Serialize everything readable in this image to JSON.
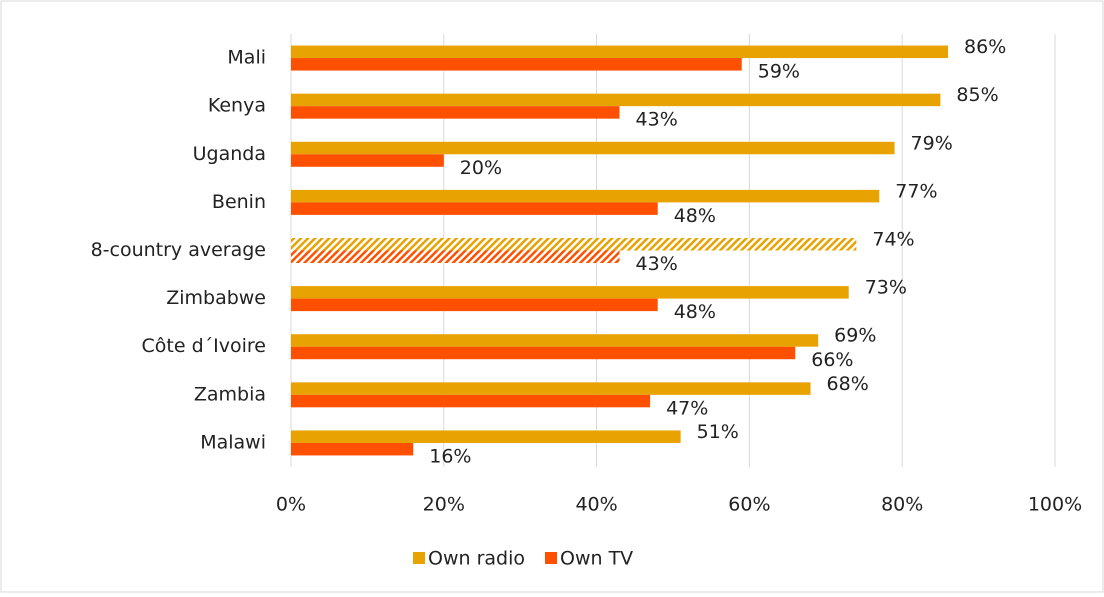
{
  "chart_data": {
    "type": "bar",
    "orientation": "horizontal",
    "categories": [
      "Mali",
      "Kenya",
      "Uganda",
      "Benin",
      "8-country average",
      "Zimbabwe",
      "Côte d´Ivoire",
      "Zambia",
      "Malawi"
    ],
    "series": [
      {
        "name": "Own radio",
        "color": "#e8a202",
        "values": [
          86,
          85,
          79,
          77,
          74,
          73,
          69,
          68,
          51
        ],
        "value_labels": [
          "86%",
          "85%",
          "79%",
          "77%",
          "74%",
          "73%",
          "69%",
          "68%",
          "51%"
        ]
      },
      {
        "name": "Own TV",
        "color": "#ff5000",
        "values": [
          59,
          43,
          20,
          48,
          43,
          48,
          66,
          47,
          16
        ],
        "value_labels": [
          "59%",
          "43%",
          "20%",
          "48%",
          "43%",
          "48%",
          "66%",
          "47%",
          "16%"
        ]
      }
    ],
    "hatched": [
      false,
      false,
      false,
      false,
      true,
      false,
      false,
      false,
      false
    ],
    "xlim": [
      0,
      100
    ],
    "xticks": [
      {
        "value": 0,
        "label": "0%"
      },
      {
        "value": 20,
        "label": "20%"
      },
      {
        "value": 40,
        "label": "40%"
      },
      {
        "value": 60,
        "label": "60%"
      },
      {
        "value": 80,
        "label": "80%"
      },
      {
        "value": 100,
        "label": "100%"
      }
    ],
    "grid": true,
    "legend": "bottom"
  }
}
